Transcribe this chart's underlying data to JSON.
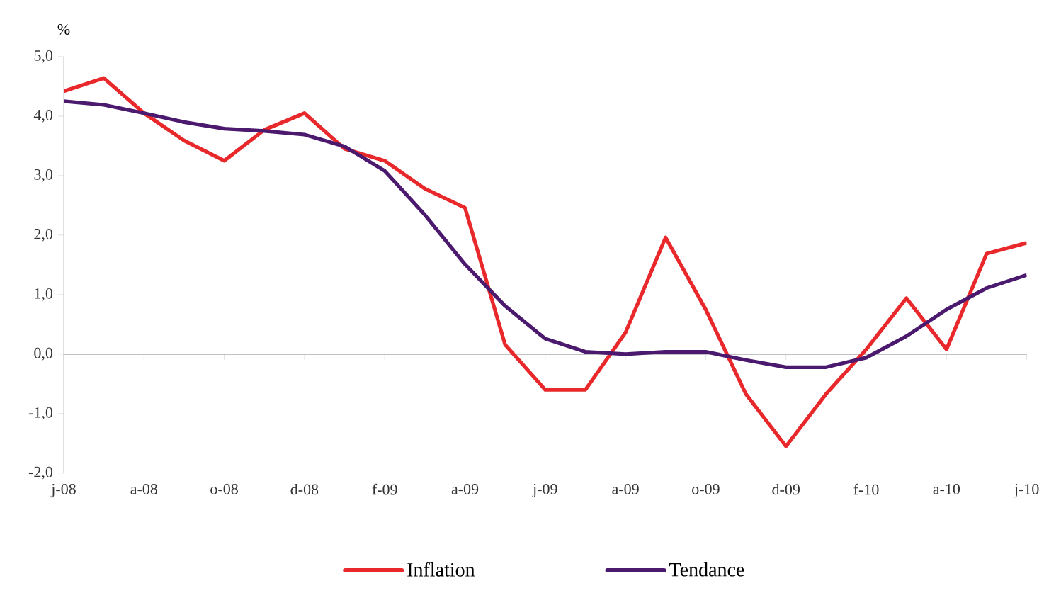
{
  "chart_data": {
    "type": "line",
    "ylabel": "%",
    "categories": [
      "j-08",
      null,
      "a-08",
      null,
      "o-08",
      null,
      "d-08",
      null,
      "f-09",
      null,
      "a-09",
      null,
      "j-09",
      null,
      "a-09",
      null,
      "o-09",
      null,
      "d-09",
      null,
      "f-10",
      null,
      "a-10",
      null,
      "j-10"
    ],
    "series": [
      {
        "name": "Inflation",
        "color": "#e8282b",
        "values": [
          4.42,
          4.64,
          4.05,
          3.59,
          3.25,
          3.77,
          4.05,
          3.45,
          3.25,
          2.78,
          2.46,
          0.16,
          -0.6,
          -0.6,
          0.36,
          1.96,
          0.75,
          -0.67,
          -1.55,
          -0.67,
          0.08,
          0.94,
          0.08,
          1.69,
          1.87
        ]
      },
      {
        "name": "Tendance",
        "color": "#4b1a6e",
        "values": [
          4.25,
          4.19,
          4.05,
          3.9,
          3.79,
          3.75,
          3.69,
          3.49,
          3.08,
          2.34,
          1.51,
          0.81,
          0.26,
          0.04,
          0.0,
          0.04,
          0.04,
          -0.1,
          -0.22,
          -0.22,
          -0.06,
          0.3,
          0.75,
          1.11,
          1.33
        ]
      }
    ],
    "ylim": [
      -2,
      5
    ],
    "yticks": [
      {
        "value": -2,
        "label": "-2,0"
      },
      {
        "value": -1,
        "label": "-1,0"
      },
      {
        "value": 0,
        "label": "0,0"
      },
      {
        "value": 1,
        "label": "1,0"
      },
      {
        "value": 2,
        "label": "2,0"
      },
      {
        "value": 3,
        "label": "3,0"
      },
      {
        "value": 4,
        "label": "4,0"
      },
      {
        "value": 5,
        "label": "5,0"
      }
    ],
    "ref_lines": [
      {
        "axis": "y",
        "value": 0,
        "color": "#b3b3b3"
      }
    ],
    "legend": "bottom",
    "grid": false,
    "marker": "none",
    "line_style": "solid"
  }
}
